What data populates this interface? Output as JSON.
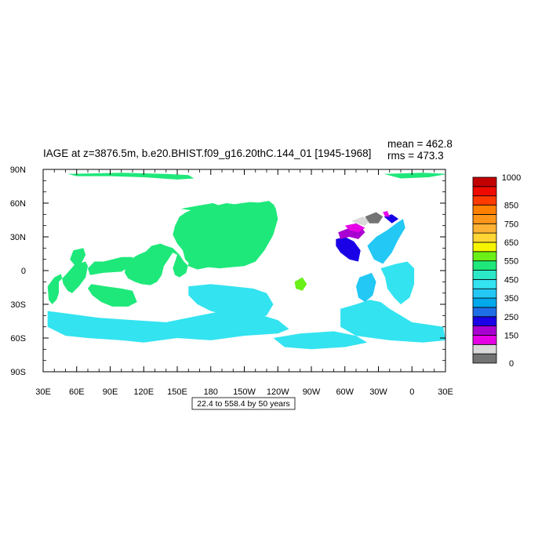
{
  "chart_data": {
    "type": "heatmap",
    "title": "IAGE at z=3876.5m, b.e20.BHIST.f09_g16.20thC.144_01 [1945-1968]",
    "stats": {
      "mean": "mean = 462.8",
      "rms": "rms = 473.3"
    },
    "xlabel": "",
    "ylabel": "",
    "x_ticks": [
      "30E",
      "60E",
      "90E",
      "120E",
      "150E",
      "180",
      "150W",
      "120W",
      "90W",
      "60W",
      "30W",
      "0",
      "30E"
    ],
    "y_ticks": [
      "90N",
      "60N",
      "30N",
      "0",
      "30S",
      "60S",
      "90S"
    ],
    "xlim": [
      30,
      390
    ],
    "ylim": [
      -90,
      90
    ],
    "contour_info": "22.4 to 558.4 by 50 years",
    "colorbar": {
      "levels": [
        0,
        50,
        100,
        150,
        200,
        250,
        300,
        350,
        400,
        450,
        500,
        550,
        600,
        650,
        700,
        750,
        800,
        850,
        900,
        950,
        1000
      ],
      "labels": [
        "0",
        "150",
        "250",
        "350",
        "450",
        "550",
        "650",
        "750",
        "850",
        "1000"
      ],
      "colors": [
        "#737373",
        "#d9d9d9",
        "#e600e6",
        "#a800d0",
        "#1a00e6",
        "#1e6ee6",
        "#00a8ec",
        "#23c8f5",
        "#33e3f0",
        "#2be8c8",
        "#1ee87a",
        "#6af017",
        "#f5f500",
        "#ffd633",
        "#ffb233",
        "#ff9619",
        "#ff7f00",
        "#ff3a00",
        "#ef0a00",
        "#c30000"
      ]
    },
    "regions": [
      {
        "fill_index": 10,
        "poly": [
          [
            153,
            55
          ],
          [
            170,
            58
          ],
          [
            182,
            60
          ],
          [
            190,
            57
          ],
          [
            200,
            54
          ],
          [
            210,
            57
          ],
          [
            220,
            60
          ],
          [
            232,
            62
          ],
          [
            237,
            58
          ],
          [
            238,
            45
          ],
          [
            235,
            30
          ],
          [
            228,
            18
          ],
          [
            220,
            8
          ],
          [
            210,
            4
          ],
          [
            198,
            3
          ],
          [
            188,
            2
          ],
          [
            178,
            3
          ],
          [
            168,
            1
          ],
          [
            160,
            4
          ],
          [
            156,
            8
          ],
          [
            152,
            14
          ],
          [
            146,
            20
          ],
          [
            140,
            22
          ],
          [
            135,
            24
          ],
          [
            127,
            22
          ],
          [
            122,
            17
          ],
          [
            115,
            14
          ],
          [
            108,
            10
          ],
          [
            104,
            5
          ],
          [
            103,
            -2
          ],
          [
            106,
            -7
          ],
          [
            112,
            -10
          ],
          [
            118,
            -12
          ],
          [
            126,
            -13
          ],
          [
            132,
            -10
          ],
          [
            136,
            -4
          ],
          [
            138,
            4
          ],
          [
            142,
            10
          ],
          [
            146,
            16
          ],
          [
            150,
            14
          ],
          [
            148,
            8
          ],
          [
            146,
            2
          ],
          [
            148,
            -4
          ],
          [
            152,
            -6
          ],
          [
            158,
            -2
          ],
          [
            160,
            6
          ],
          [
            162,
            14
          ],
          [
            166,
            20
          ],
          [
            170,
            26
          ],
          [
            172,
            34
          ],
          [
            174,
            44
          ],
          [
            176,
            50
          ],
          [
            180,
            54
          ],
          [
            188,
            57
          ],
          [
            196,
            56
          ],
          [
            204,
            53
          ],
          [
            212,
            55
          ],
          [
            222,
            58
          ],
          [
            228,
            60
          ],
          [
            232,
            56
          ],
          [
            228,
            50
          ],
          [
            218,
            48
          ],
          [
            208,
            50
          ],
          [
            200,
            52
          ],
          [
            192,
            53
          ],
          [
            184,
            52
          ],
          [
            176,
            50
          ],
          [
            168,
            52
          ],
          [
            160,
            54
          ]
        ]
      },
      {
        "fill_index": 10,
        "poly": [
          [
            201,
            59
          ],
          [
            215,
            61
          ],
          [
            230,
            60
          ],
          [
            238,
            56
          ],
          [
            240,
            46
          ],
          [
            236,
            32
          ],
          [
            230,
            22
          ],
          [
            222,
            12
          ],
          [
            212,
            6
          ],
          [
            200,
            4
          ],
          [
            190,
            3
          ],
          [
            180,
            4
          ],
          [
            170,
            2
          ],
          [
            162,
            5
          ],
          [
            157,
            10
          ],
          [
            155,
            18
          ],
          [
            150,
            24
          ],
          [
            146,
            32
          ],
          [
            148,
            40
          ],
          [
            152,
            48
          ],
          [
            158,
            52
          ],
          [
            166,
            55
          ],
          [
            176,
            57
          ],
          [
            186,
            58
          ],
          [
            194,
            60
          ]
        ]
      },
      {
        "fill_index": 10,
        "poly": [
          [
            46,
            -3
          ],
          [
            40,
            -6
          ],
          [
            34,
            -14
          ],
          [
            35,
            -26
          ],
          [
            38,
            -30
          ],
          [
            42,
            -26
          ],
          [
            44,
            -20
          ],
          [
            44,
            -10
          ],
          [
            50,
            -4
          ],
          [
            58,
            5
          ],
          [
            68,
            8
          ],
          [
            70,
            4
          ],
          [
            68,
            -6
          ],
          [
            62,
            -14
          ],
          [
            56,
            -20
          ],
          [
            52,
            -18
          ],
          [
            48,
            -12
          ]
        ]
      },
      {
        "fill_index": 10,
        "poly": [
          [
            57,
            18
          ],
          [
            66,
            20
          ],
          [
            68,
            14
          ],
          [
            64,
            6
          ],
          [
            58,
            5
          ],
          [
            54,
            10
          ]
        ]
      },
      {
        "fill_index": 10,
        "poly": [
          [
            72,
            -4
          ],
          [
            84,
            -2
          ],
          [
            100,
            -1
          ],
          [
            108,
            4
          ],
          [
            110,
            12
          ],
          [
            100,
            12
          ],
          [
            92,
            10
          ],
          [
            84,
            8
          ],
          [
            76,
            8
          ],
          [
            70,
            2
          ]
        ]
      },
      {
        "fill_index": 10,
        "poly": [
          [
            73,
            -12
          ],
          [
            86,
            -14
          ],
          [
            100,
            -16
          ],
          [
            110,
            -18
          ],
          [
            114,
            -28
          ],
          [
            106,
            -32
          ],
          [
            92,
            -32
          ],
          [
            82,
            -28
          ],
          [
            74,
            -22
          ],
          [
            70,
            -16
          ]
        ]
      },
      {
        "fill_index": 10,
        "poly": [
          [
            130,
            -3
          ],
          [
            133,
            -6
          ],
          [
            132,
            2
          ]
        ]
      },
      {
        "fill_index": 10,
        "poly": [
          [
            52,
            86
          ],
          [
            100,
            87
          ],
          [
            140,
            86
          ],
          [
            160,
            85
          ],
          [
            165,
            82
          ],
          [
            150,
            81
          ],
          [
            120,
            83
          ],
          [
            90,
            84
          ],
          [
            60,
            84
          ]
        ]
      },
      {
        "fill_index": 10,
        "poly": [
          [
            335,
            86
          ],
          [
            370,
            87
          ],
          [
            392,
            86
          ],
          [
            375,
            83
          ],
          [
            350,
            82
          ]
        ]
      },
      {
        "fill_index": 11,
        "poly": [
          [
            255,
            -10
          ],
          [
            262,
            -6
          ],
          [
            266,
            -12
          ],
          [
            262,
            -18
          ],
          [
            256,
            -16
          ]
        ]
      },
      {
        "fill_index": 8,
        "poly": [
          [
            34,
            -36
          ],
          [
            50,
            -38
          ],
          [
            80,
            -42
          ],
          [
            110,
            -44
          ],
          [
            140,
            -46
          ],
          [
            170,
            -40
          ],
          [
            200,
            -34
          ],
          [
            220,
            -38
          ],
          [
            240,
            -44
          ],
          [
            250,
            -52
          ],
          [
            240,
            -56
          ],
          [
            210,
            -58
          ],
          [
            180,
            -62
          ],
          [
            150,
            -60
          ],
          [
            120,
            -64
          ],
          [
            100,
            -62
          ],
          [
            70,
            -60
          ],
          [
            50,
            -58
          ],
          [
            34,
            -50
          ]
        ]
      },
      {
        "fill_index": 8,
        "poly": [
          [
            160,
            -14
          ],
          [
            180,
            -12
          ],
          [
            200,
            -14
          ],
          [
            218,
            -16
          ],
          [
            230,
            -20
          ],
          [
            236,
            -30
          ],
          [
            230,
            -40
          ],
          [
            214,
            -44
          ],
          [
            196,
            -40
          ],
          [
            180,
            -36
          ],
          [
            168,
            -30
          ],
          [
            160,
            -22
          ]
        ]
      },
      {
        "fill_index": 8,
        "poly": [
          [
            296,
            -34
          ],
          [
            310,
            -30
          ],
          [
            322,
            -26
          ],
          [
            332,
            -28
          ],
          [
            340,
            -34
          ],
          [
            350,
            -40
          ],
          [
            360,
            -46
          ],
          [
            374,
            -48
          ],
          [
            388,
            -50
          ],
          [
            390,
            -62
          ],
          [
            370,
            -64
          ],
          [
            340,
            -62
          ],
          [
            310,
            -58
          ],
          [
            296,
            -50
          ]
        ]
      },
      {
        "fill_index": 8,
        "poly": [
          [
            332,
            2
          ],
          [
            346,
            6
          ],
          [
            356,
            8
          ],
          [
            362,
            2
          ],
          [
            362,
            -12
          ],
          [
            358,
            -24
          ],
          [
            350,
            -30
          ],
          [
            344,
            -24
          ],
          [
            338,
            -16
          ],
          [
            336,
            -6
          ]
        ]
      },
      {
        "fill_index": 8,
        "poly": [
          [
            236,
            -60
          ],
          [
            260,
            -56
          ],
          [
            290,
            -54
          ],
          [
            310,
            -58
          ],
          [
            320,
            -64
          ],
          [
            300,
            -68
          ],
          [
            270,
            -70
          ],
          [
            246,
            -68
          ]
        ]
      },
      {
        "fill_index": 7,
        "poly": [
          [
            313,
            -6
          ],
          [
            324,
            -2
          ],
          [
            328,
            -10
          ],
          [
            325,
            -22
          ],
          [
            318,
            -28
          ],
          [
            312,
            -24
          ],
          [
            310,
            -14
          ]
        ]
      },
      {
        "fill_index": 7,
        "poly": [
          [
            320,
            22
          ],
          [
            328,
            30
          ],
          [
            338,
            36
          ],
          [
            346,
            42
          ],
          [
            352,
            46
          ],
          [
            354,
            38
          ],
          [
            348,
            28
          ],
          [
            342,
            16
          ],
          [
            334,
            6
          ],
          [
            326,
            10
          ]
        ]
      },
      {
        "fill_index": 4,
        "poly": [
          [
            292,
            28
          ],
          [
            300,
            30
          ],
          [
            308,
            26
          ],
          [
            314,
            18
          ],
          [
            312,
            8
          ],
          [
            304,
            10
          ],
          [
            296,
            16
          ],
          [
            292,
            22
          ]
        ]
      },
      {
        "fill_index": 3,
        "poly": [
          [
            294,
            34
          ],
          [
            304,
            38
          ],
          [
            314,
            40
          ],
          [
            318,
            34
          ],
          [
            312,
            28
          ],
          [
            304,
            30
          ],
          [
            296,
            28
          ]
        ]
      },
      {
        "fill_index": 2,
        "poly": [
          [
            300,
            40
          ],
          [
            310,
            42
          ],
          [
            318,
            38
          ],
          [
            312,
            34
          ],
          [
            304,
            36
          ]
        ]
      },
      {
        "fill_index": 1,
        "poly": [
          [
            306,
            44
          ],
          [
            316,
            48
          ],
          [
            322,
            44
          ],
          [
            318,
            40
          ],
          [
            310,
            42
          ]
        ]
      },
      {
        "fill_index": 0,
        "poly": [
          [
            318,
            48
          ],
          [
            328,
            52
          ],
          [
            334,
            48
          ],
          [
            330,
            42
          ],
          [
            322,
            42
          ]
        ]
      },
      {
        "fill_index": 4,
        "poly": [
          [
            335,
            48
          ],
          [
            342,
            50
          ],
          [
            348,
            46
          ],
          [
            342,
            42
          ]
        ]
      },
      {
        "fill_index": 2,
        "poly": [
          [
            334,
            52
          ],
          [
            338,
            53
          ],
          [
            340,
            48
          ],
          [
            336,
            48
          ]
        ]
      }
    ]
  }
}
